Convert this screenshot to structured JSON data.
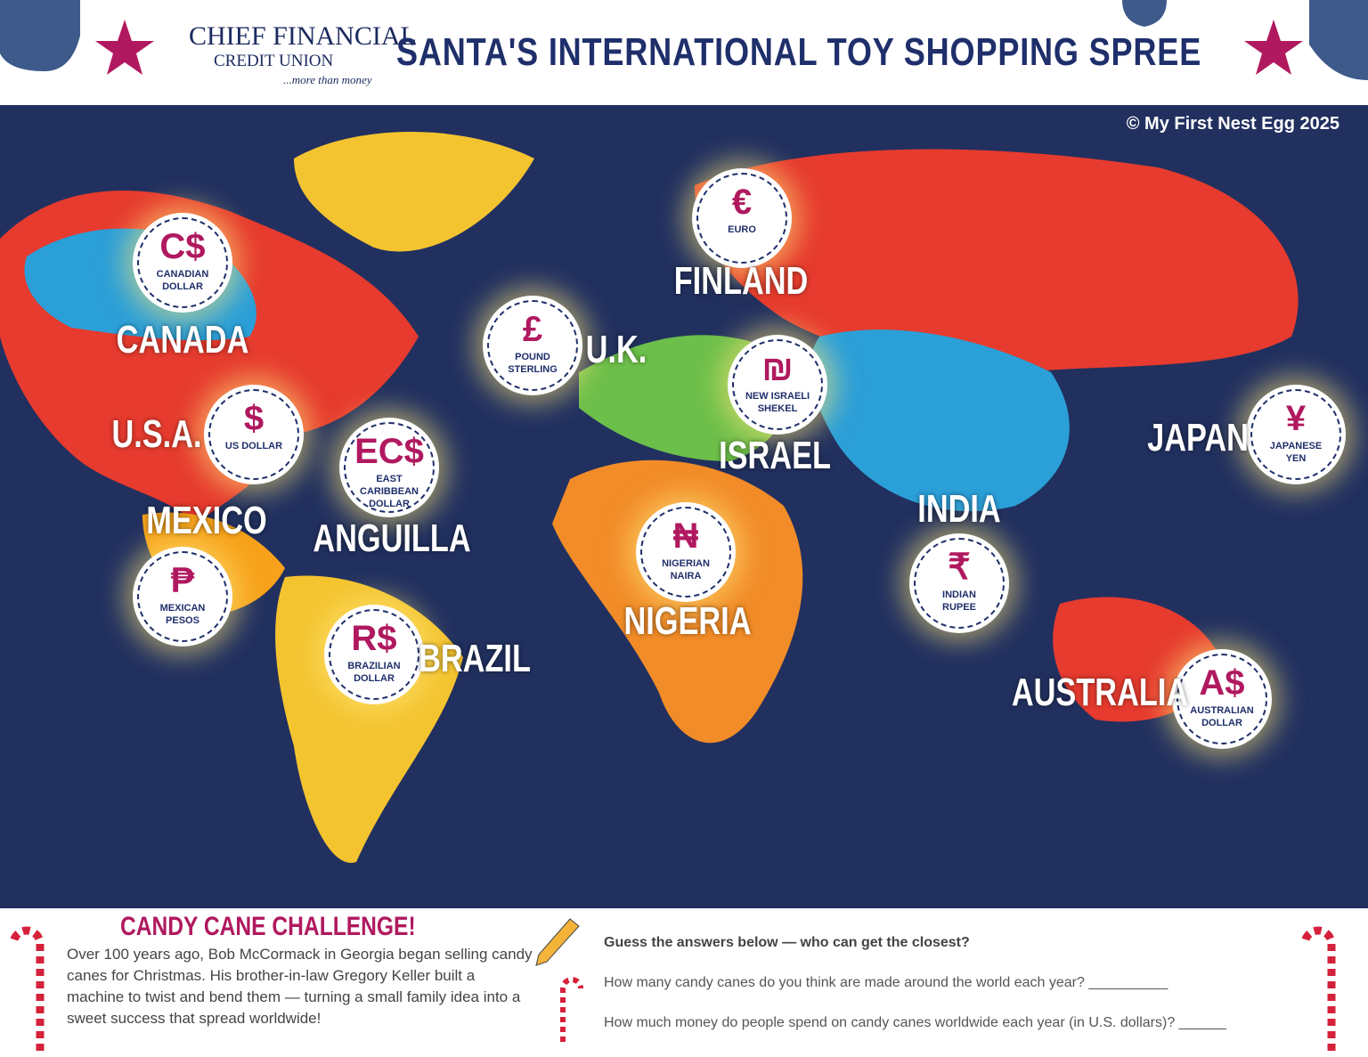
{
  "header": {
    "logo": {
      "line1": "CHIEF FINANCIAL",
      "line2": "CREDIT UNION",
      "tagline": "...more than money"
    },
    "title": "SANTA'S INTERNATIONAL TOY SHOPPING SPREE"
  },
  "map": {
    "copyright": "© My First Nest Egg 2025",
    "countries": [
      {
        "name": "CANADA",
        "symbol": "C$",
        "currency": "CANADIAN DOLLAR"
      },
      {
        "name": "U.S.A.",
        "symbol": "$",
        "currency": "US DOLLAR"
      },
      {
        "name": "MEXICO",
        "symbol": "₱",
        "currency": "MEXICAN PESOS"
      },
      {
        "name": "ANGUILLA",
        "symbol": "EC$",
        "currency": "EAST CARIBBEAN DOLLAR"
      },
      {
        "name": "BRAZIL",
        "symbol": "R$",
        "currency": "BRAZILIAN DOLLAR"
      },
      {
        "name": "U.K.",
        "symbol": "£",
        "currency": "POUND STERLING"
      },
      {
        "name": "FINLAND",
        "symbol": "€",
        "currency": "EURO"
      },
      {
        "name": "ISRAEL",
        "symbol": "₪",
        "currency": "NEW ISRAELI SHEKEL"
      },
      {
        "name": "NIGERIA",
        "symbol": "₦",
        "currency": "NIGERIAN NAIRA"
      },
      {
        "name": "INDIA",
        "symbol": "₹",
        "currency": "INDIAN RUPEE"
      },
      {
        "name": "JAPAN",
        "symbol": "¥",
        "currency": "JAPANESE YEN"
      },
      {
        "name": "AUSTRALIA",
        "symbol": "A$",
        "currency": "AUSTRALIAN DOLLAR"
      }
    ]
  },
  "challenge": {
    "title": "CANDY CANE CHALLENGE!",
    "story": "Over 100 years ago, Bob McCormack in Georgia began selling candy canes for Christmas. His brother-in-law Gregory Keller built a machine to twist and bend them — turning a small family idea into a sweet success that spread worldwide!",
    "prompt": "Guess the answers below — who can get the closest?",
    "questions": [
      "How many candy canes do you think are made around the world each year? __________",
      "How much money do people spend on candy canes worldwide each year (in U.S. dollars)? ______"
    ]
  }
}
